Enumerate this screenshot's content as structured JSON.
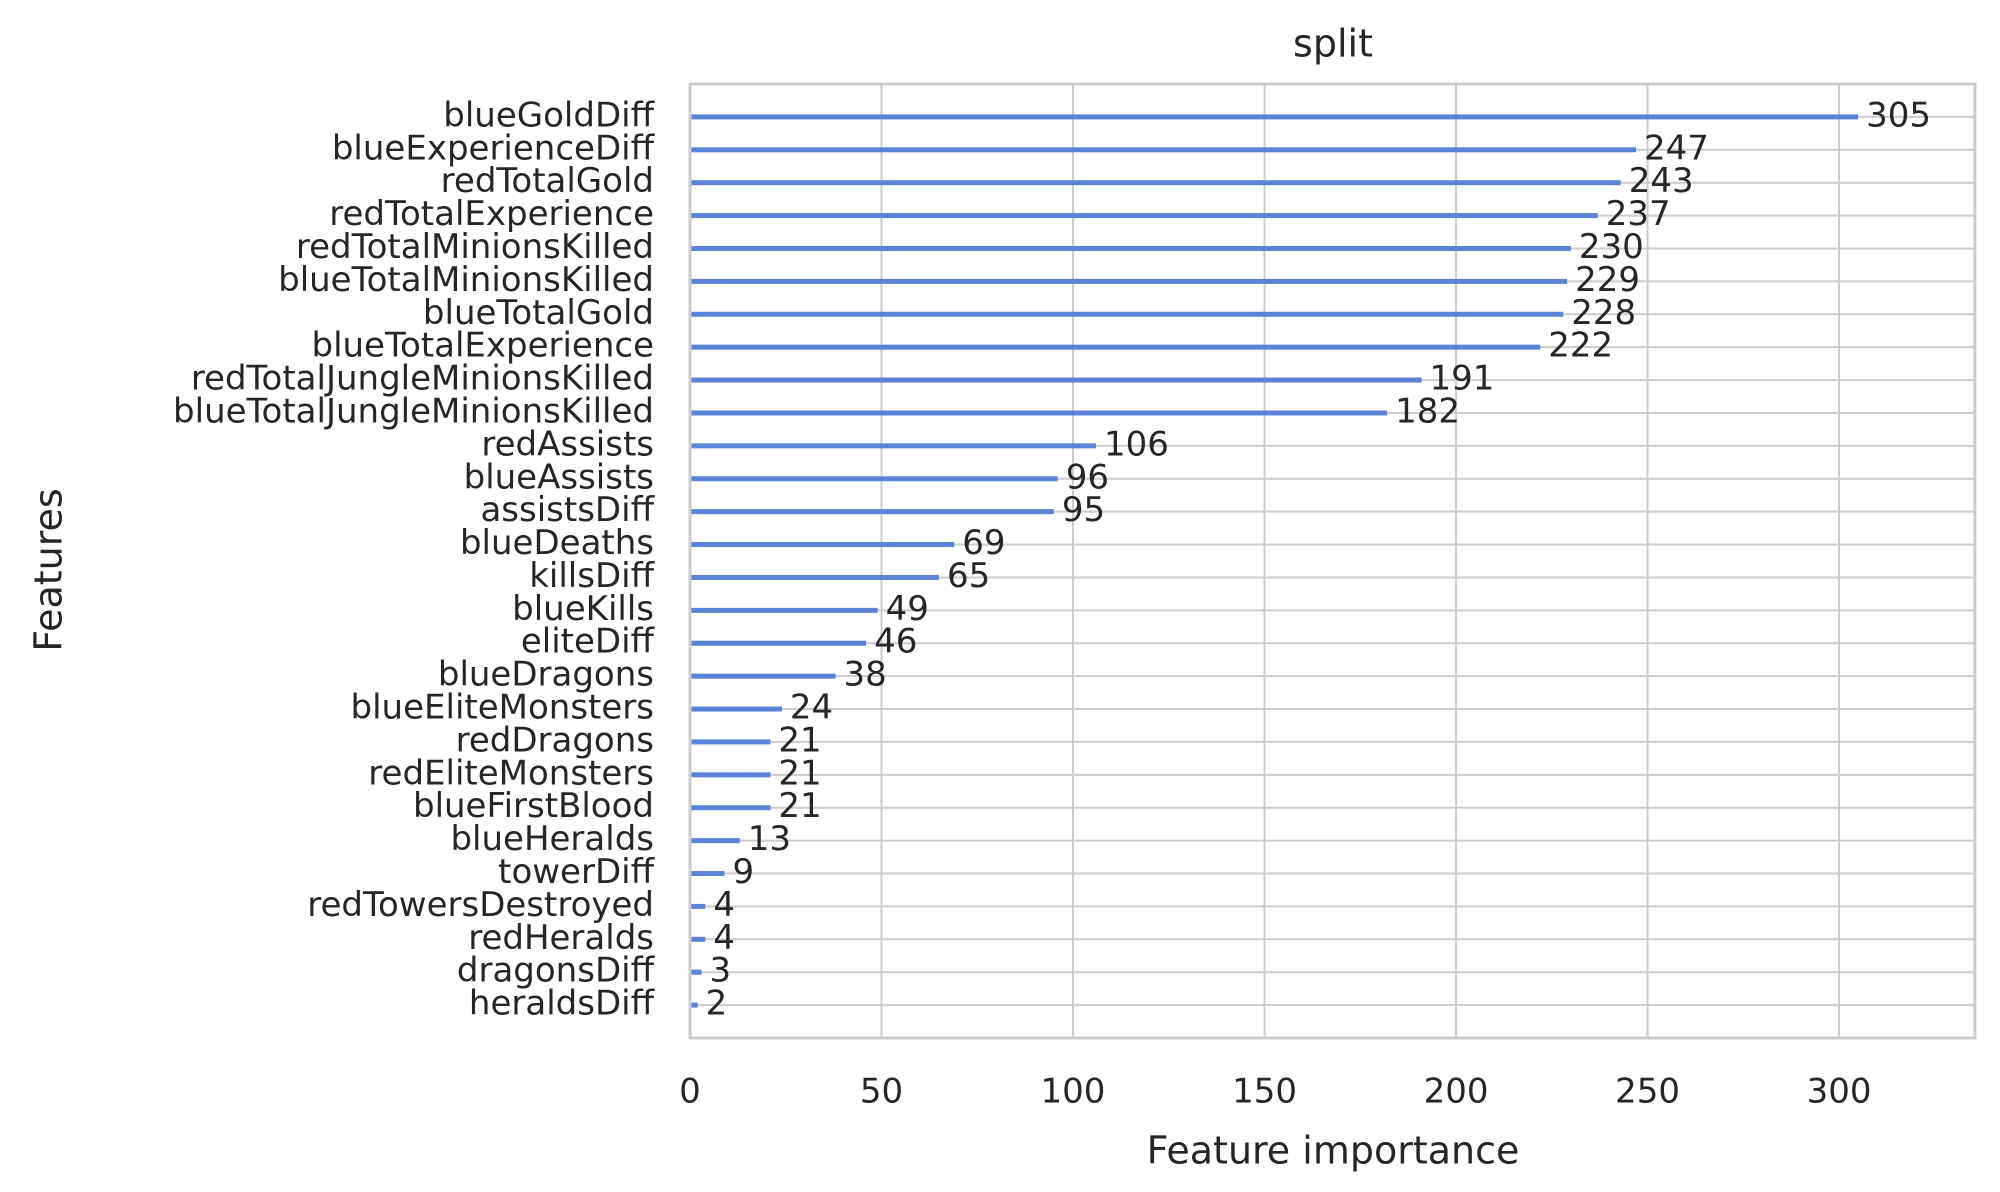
{
  "chart_data": {
    "type": "barh",
    "title": "split",
    "xlabel": "Feature importance",
    "ylabel": "Features",
    "categories": [
      "blueGoldDiff",
      "blueExperienceDiff",
      "redTotalGold",
      "redTotalExperience",
      "redTotalMinionsKilled",
      "blueTotalMinionsKilled",
      "blueTotalGold",
      "blueTotalExperience",
      "redTotalJungleMinionsKilled",
      "blueTotalJungleMinionsKilled",
      "redAssists",
      "blueAssists",
      "assistsDiff",
      "blueDeaths",
      "killsDiff",
      "blueKills",
      "eliteDiff",
      "blueDragons",
      "blueEliteMonsters",
      "redDragons",
      "redEliteMonsters",
      "blueFirstBlood",
      "blueHeralds",
      "towerDiff",
      "redTowersDestroyed",
      "redHeralds",
      "dragonsDiff",
      "heraldsDiff"
    ],
    "values": [
      305,
      247,
      243,
      237,
      230,
      229,
      228,
      222,
      191,
      182,
      106,
      96,
      95,
      69,
      65,
      49,
      46,
      38,
      24,
      21,
      21,
      21,
      13,
      9,
      4,
      4,
      3,
      2
    ],
    "color": "#5b84d8",
    "xlim": [
      0,
      335.5
    ],
    "xticks": [
      0,
      50,
      100,
      150,
      200,
      250,
      300
    ],
    "grid": true
  }
}
